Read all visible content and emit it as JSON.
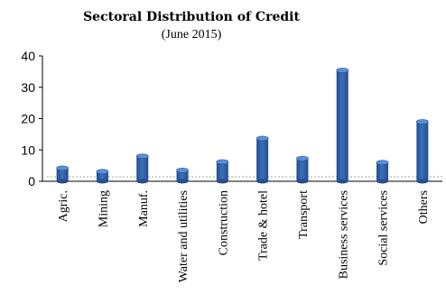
{
  "chart_data": {
    "type": "bar",
    "title": "Sectoral Distribution of Credit",
    "subtitle": "(June 2015)",
    "xlabel": "",
    "ylabel": "",
    "ylim": [
      0,
      40
    ],
    "yticks": [
      0,
      10,
      20,
      30,
      40
    ],
    "grid": false,
    "legend": "none",
    "bar_color": "#3d6fb8",
    "categories": [
      "Agric.",
      "Mining",
      "Manuf.",
      "Water and utilities",
      "Construction",
      "Trade & hotel",
      "Transport",
      "Business services",
      "Social services",
      "Others"
    ],
    "values": [
      4.2,
      3.1,
      8.0,
      3.5,
      6.2,
      13.7,
      7.3,
      35.4,
      6.0,
      19.0
    ]
  }
}
